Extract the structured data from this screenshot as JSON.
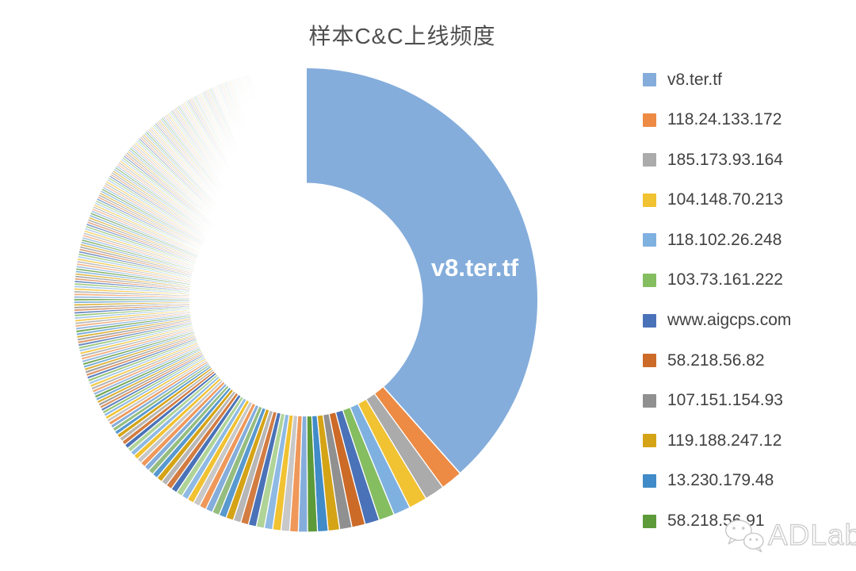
{
  "title": "样本C&C上线频度",
  "watermark": {
    "text": "ADLab"
  },
  "chart_data": {
    "type": "pie",
    "subtype": "donut",
    "hole_ratio": 0.5,
    "start_angle_deg": 0,
    "direction": "clockwise",
    "background": "#ffffff",
    "grid": false,
    "legend_position": "right",
    "data_label": {
      "text": "v8.ter.tf",
      "color": "#ffffff"
    },
    "palette": [
      "#84ADDB",
      "#ED8A44",
      "#ABABAB",
      "#F1C231",
      "#7FB1E0",
      "#85BD61",
      "#4A72B8",
      "#CC6A28",
      "#909090",
      "#D5A416",
      "#418BC8",
      "#5C9A3A"
    ],
    "labeled_slices": [
      {
        "label": "v8.ter.tf",
        "pct": 38.2
      },
      {
        "label": "118.24.133.172",
        "pct": 1.5
      },
      {
        "label": "185.173.93.164",
        "pct": 1.38
      },
      {
        "label": "104.148.70.213",
        "pct": 1.27
      },
      {
        "label": "118.102.26.248",
        "pct": 1.17
      },
      {
        "label": "103.73.161.222",
        "pct": 1.08
      },
      {
        "label": "www.aigcps.com",
        "pct": 1.0
      },
      {
        "label": "58.218.56.82",
        "pct": 0.92
      },
      {
        "label": "107.151.154.93",
        "pct": 0.85
      },
      {
        "label": "119.188.247.12",
        "pct": 0.79
      },
      {
        "label": "13.230.179.48",
        "pct": 0.73
      },
      {
        "label": "58.218.56.91",
        "pct": 0.68
      }
    ],
    "unlabeled_tail_pct": [
      0.63,
      0.6,
      0.59,
      0.58,
      0.57,
      0.56,
      0.55,
      0.54,
      0.53,
      0.52,
      0.51,
      0.5,
      0.49,
      0.48,
      0.47,
      0.46,
      0.45,
      0.44,
      0.43,
      0.42,
      0.41,
      0.4,
      0.39,
      0.38,
      0.37,
      0.36,
      0.35,
      0.34,
      0.33,
      0.32,
      0.31,
      0.3,
      0.29,
      0.28,
      0.27,
      0.26,
      0.25,
      0.24,
      0.23,
      0.22,
      0.21
    ],
    "unlabeled_fine_tail_pct_runs": [
      [
        0.2,
        16
      ],
      [
        0.19,
        16
      ],
      [
        0.18,
        16
      ],
      [
        0.17,
        16
      ],
      [
        0.16,
        16
      ],
      [
        0.15,
        16
      ],
      [
        0.14,
        16
      ],
      [
        0.13,
        16
      ],
      [
        0.12,
        16
      ],
      [
        0.11,
        16
      ],
      [
        0.1,
        16
      ],
      [
        0.09,
        16
      ],
      [
        0.08,
        16
      ],
      [
        0.07,
        16
      ],
      [
        0.06,
        16
      ],
      [
        0.05,
        16
      ],
      [
        0.04,
        24
      ]
    ]
  }
}
